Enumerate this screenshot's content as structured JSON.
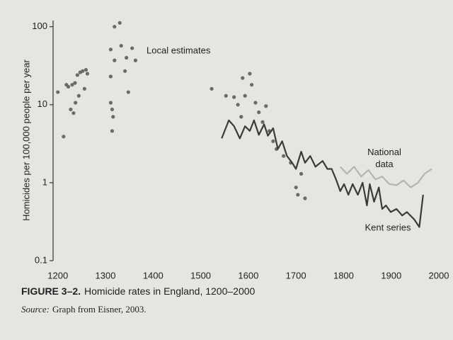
{
  "chart_data": {
    "type": "line",
    "y_label": "Homicides per 100,000 people per year",
    "caption_label": "FIGURE 3–2.",
    "caption": "Homicide rates in England, 1200–2000",
    "source_label": "Source:",
    "source": "Graph from Eisner, 2003.",
    "log_y": true,
    "xlim": [
      1190,
      2000
    ],
    "xticks": [
      1200,
      1300,
      1400,
      1500,
      1600,
      1700,
      1800,
      1900,
      2000
    ],
    "ylim": [
      0.1,
      120
    ],
    "yticks": [
      0.1,
      1,
      10,
      100
    ],
    "series": [
      {
        "name": "Local estimates",
        "mode": "markers",
        "color": "#6a6a6a",
        "x": [
          1200,
          1212,
          1218,
          1222,
          1230,
          1236,
          1241,
          1247,
          1252,
          1259,
          1262,
          1227,
          1237,
          1244,
          1256,
          1233,
          1319,
          1330,
          1311,
          1333,
          1356,
          1319,
          1341,
          1311,
          1348,
          1311,
          1314,
          1316,
          1314,
          1363,
          1344,
          1523,
          1553,
          1570,
          1578,
          1588,
          1593,
          1603,
          1607,
          1585,
          1615,
          1622,
          1630,
          1637,
          1644,
          1652,
          1659,
          1674,
          1689,
          1700,
          1711,
          1704,
          1719
        ],
        "values": [
          14.5,
          3.9,
          18,
          17,
          18,
          19,
          24,
          26,
          27,
          28,
          25,
          8.7,
          10.6,
          13,
          16,
          7.8,
          100,
          112,
          51,
          57,
          53,
          37,
          27,
          23,
          14.5,
          10.6,
          8.7,
          7,
          4.6,
          37,
          40,
          16,
          13,
          12.5,
          10,
          22,
          13,
          25,
          18,
          7,
          10.6,
          8,
          6,
          9.6,
          4.6,
          3.4,
          2.7,
          2.2,
          1.8,
          0.87,
          1.3,
          0.7,
          0.63
        ]
      },
      {
        "name": "Kent series",
        "mode": "lines",
        "color": "#3a3a3a",
        "x": [
          1544,
          1559,
          1570,
          1582,
          1593,
          1603,
          1612,
          1622,
          1633,
          1641,
          1652,
          1662,
          1671,
          1681,
          1692,
          1700,
          1711,
          1719,
          1730,
          1741,
          1756,
          1766,
          1775,
          1785,
          1793,
          1801,
          1810,
          1819,
          1830,
          1840,
          1849,
          1855,
          1864,
          1874,
          1881,
          1889,
          1899,
          1911,
          1923,
          1933,
          1948,
          1959,
          1967
        ],
        "values": [
          3.7,
          6.3,
          5.3,
          3.7,
          5.3,
          4.6,
          6.3,
          4.1,
          5.6,
          4,
          5,
          2.7,
          3.4,
          2.2,
          1.8,
          1.5,
          2.5,
          1.8,
          2.2,
          1.6,
          1.9,
          1.5,
          1.5,
          1.07,
          0.78,
          0.96,
          0.7,
          0.96,
          0.7,
          1.0,
          0.51,
          0.96,
          0.57,
          0.87,
          0.46,
          0.51,
          0.42,
          0.46,
          0.38,
          0.42,
          0.34,
          0.27,
          0.7
        ]
      },
      {
        "name": "National data",
        "mode": "lines",
        "color": "#b4b4b4",
        "x": [
          1793,
          1807,
          1822,
          1837,
          1852,
          1867,
          1881,
          1896,
          1911,
          1926,
          1941,
          1956,
          1970,
          1985
        ],
        "values": [
          1.6,
          1.3,
          1.6,
          1.2,
          1.45,
          1.1,
          1.2,
          0.96,
          0.93,
          1.07,
          0.87,
          1.0,
          1.3,
          1.5
        ]
      }
    ]
  }
}
